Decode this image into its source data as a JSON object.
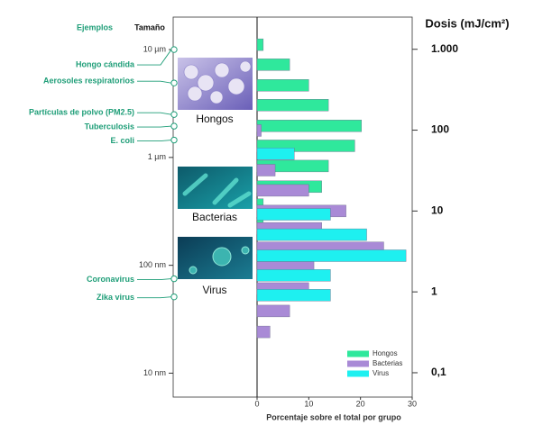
{
  "chart_data": {
    "type": "bar",
    "orientation": "horizontal",
    "examples_heading": "Ejemplos",
    "size_heading": "Tamaño",
    "y_label": "Dosis (mJ/cm²)",
    "x_label": "Porcentaje sobre el total por grupo",
    "xlim": [
      0,
      30
    ],
    "xticks": [
      0,
      10,
      20,
      30
    ],
    "ylim": [
      0.05,
      2500
    ],
    "y_scale": "log",
    "yticks": [
      {
        "value": 1000,
        "label": "1.000"
      },
      100,
      10,
      1,
      {
        "value": 0.1,
        "label": "0,1"
      }
    ],
    "size_lim": [
      6,
      20000
    ],
    "size_scale": "log",
    "size_ticks": [
      {
        "value": 10000,
        "label": "10 µm"
      },
      {
        "value": 1000,
        "label": "1 µm"
      },
      {
        "value": 100,
        "label": "100 nm"
      },
      {
        "value": 10,
        "label": "10 nm"
      }
    ],
    "examples": [
      {
        "label": "Hongo cándida",
        "size": 10000
      },
      {
        "label": "Aerosoles respiratorios",
        "size": 4900
      },
      {
        "label": "Partículas de polvo (PM2.5)",
        "size": 2500
      },
      {
        "label": "Tuberculosis",
        "size": 1950
      },
      {
        "label": "E. coli",
        "size": 1450
      },
      {
        "label": "Coronavirus",
        "size": 75
      },
      {
        "label": "Zika virus",
        "size": 51
      }
    ],
    "legend": "lower right",
    "series": [
      {
        "name": "Hongos",
        "color": "#2fe89c",
        "x": [
          1140,
          645,
          358,
          204,
          113,
          64,
          36,
          20,
          12,
          6.7
        ],
        "values": [
          1.2,
          6.3,
          10,
          13.8,
          20.2,
          18.9,
          13.8,
          12.5,
          1.2,
          1.2
        ]
      },
      {
        "name": "Bacterias",
        "color": "#a98ad6",
        "x": [
          99,
          32,
          18,
          10,
          6.1,
          3.5,
          2.0,
          1.1,
          0.58,
          0.32
        ],
        "values": [
          0.8,
          3.5,
          10,
          17.2,
          12.5,
          24.5,
          11,
          10,
          6.3,
          2.5
        ]
      },
      {
        "name": "Virus",
        "color": "#1ef0f0",
        "x": [
          51,
          9.1,
          5.1,
          2.8,
          1.6,
          0.91
        ],
        "values": [
          7.2,
          14.2,
          21.2,
          28.8,
          14.2,
          14.2
        ]
      }
    ]
  }
}
